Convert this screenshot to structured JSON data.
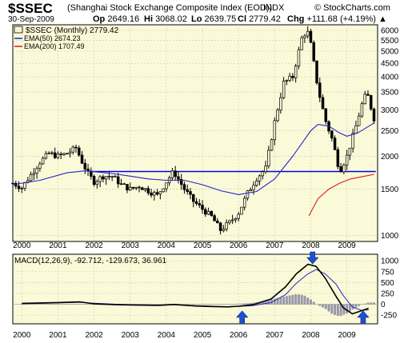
{
  "header": {
    "symbol": "$SSEC",
    "name": "(Shanghai Stock Exchange Composite Index (EOD))",
    "exchange": "INDX",
    "copyright": "© StockCharts.com",
    "date": "30-Sep-2009",
    "quote": {
      "open_label": "Op",
      "open": "2649.16",
      "high_label": "Hi",
      "high": "3068.02",
      "low_label": "Lo",
      "low": "2639.75",
      "close_label": "Cl",
      "close": "2779.42",
      "change_label": "Chg",
      "change": "+111.68 (+4.19%)",
      "change_arrow": "▲"
    }
  },
  "colors": {
    "panel_bg": "#fbfad8",
    "grid": "#c8c8b4",
    "candle": "#000000",
    "ema50": "#2323c8",
    "ema200": "#dc1e1e",
    "support_line": "#0000dc",
    "macd_line": "#000000",
    "signal_line": "#2828c8",
    "histogram": "#9898a8",
    "arrow": "#1e50d2"
  },
  "chart_data": [
    {
      "type": "candlestick",
      "legend": {
        "series": "$SSEC (Monthly)",
        "series_value": "2779.42",
        "ema50": "EMA(50)",
        "ema50_value": "2674.23",
        "ema200": "EMA(200)",
        "ema200_value": "1707.49"
      },
      "scale": "log",
      "ylim": [
        950,
        6300
      ],
      "xlim": [
        1999.75,
        2009.85
      ],
      "y_ticks": [
        6000,
        5500,
        5000,
        4500,
        4000,
        3500,
        3000,
        2500,
        2000,
        1500,
        1000
      ],
      "x_ticks": [
        "2000",
        "2001",
        "2002",
        "2003",
        "2004",
        "2005",
        "2006",
        "2007",
        "2008",
        "2009"
      ],
      "grid": true,
      "support_level": 1750,
      "support_range": [
        2001.9,
        2009.8
      ],
      "price": [
        [
          1999.75,
          1580
        ],
        [
          2000.0,
          1520
        ],
        [
          2000.25,
          1700
        ],
        [
          2000.5,
          1900
        ],
        [
          2000.75,
          2050
        ],
        [
          2001.0,
          2000
        ],
        [
          2001.25,
          2050
        ],
        [
          2001.5,
          2150
        ],
        [
          2001.67,
          1900
        ],
        [
          2001.83,
          1720
        ],
        [
          2002.0,
          1600
        ],
        [
          2002.25,
          1680
        ],
        [
          2002.5,
          1680
        ],
        [
          2002.75,
          1560
        ],
        [
          2003.0,
          1500
        ],
        [
          2003.25,
          1540
        ],
        [
          2003.5,
          1480
        ],
        [
          2003.75,
          1420
        ],
        [
          2004.0,
          1600
        ],
        [
          2004.2,
          1750
        ],
        [
          2004.35,
          1620
        ],
        [
          2004.5,
          1500
        ],
        [
          2004.75,
          1350
        ],
        [
          2005.0,
          1260
        ],
        [
          2005.25,
          1180
        ],
        [
          2005.5,
          1050
        ],
        [
          2005.75,
          1120
        ],
        [
          2006.0,
          1220
        ],
        [
          2006.25,
          1450
        ],
        [
          2006.5,
          1650
        ],
        [
          2006.75,
          1800
        ],
        [
          2007.0,
          2700
        ],
        [
          2007.25,
          3800
        ],
        [
          2007.5,
          4000
        ],
        [
          2007.75,
          5600
        ],
        [
          2007.9,
          6000
        ],
        [
          2008.0,
          5300
        ],
        [
          2008.2,
          3600
        ],
        [
          2008.4,
          2750
        ],
        [
          2008.6,
          2300
        ],
        [
          2008.8,
          1750
        ],
        [
          2009.0,
          2000
        ],
        [
          2009.25,
          2600
        ],
        [
          2009.4,
          3100
        ],
        [
          2009.55,
          3500
        ],
        [
          2009.75,
          2779
        ]
      ],
      "ema50": [
        [
          1999.75,
          1560
        ],
        [
          2000.5,
          1620
        ],
        [
          2001.25,
          1730
        ],
        [
          2001.75,
          1760
        ],
        [
          2002.5,
          1720
        ],
        [
          2003.0,
          1680
        ],
        [
          2003.5,
          1640
        ],
        [
          2004.0,
          1620
        ],
        [
          2004.5,
          1620
        ],
        [
          2005.0,
          1560
        ],
        [
          2005.5,
          1480
        ],
        [
          2006.0,
          1430
        ],
        [
          2006.5,
          1470
        ],
        [
          2007.0,
          1640
        ],
        [
          2007.5,
          2000
        ],
        [
          2008.0,
          2500
        ],
        [
          2008.2,
          2640
        ],
        [
          2008.5,
          2600
        ],
        [
          2008.8,
          2450
        ],
        [
          2009.0,
          2380
        ],
        [
          2009.3,
          2450
        ],
        [
          2009.75,
          2674
        ]
      ],
      "ema200": [
        [
          2007.95,
          1190
        ],
        [
          2008.2,
          1380
        ],
        [
          2008.5,
          1500
        ],
        [
          2008.8,
          1580
        ],
        [
          2009.1,
          1640
        ],
        [
          2009.5,
          1680
        ],
        [
          2009.75,
          1707
        ]
      ]
    },
    {
      "type": "line",
      "title": "MACD(12,26,9)",
      "values": [
        "-92.712",
        "-129.673",
        "36.961"
      ],
      "ylim": [
        -450,
        1150
      ],
      "y_ticks": [
        1000,
        750,
        500,
        250,
        0,
        -250
      ],
      "x_ticks": [
        "2000",
        "2001",
        "2002",
        "2003",
        "2004",
        "2005",
        "2006",
        "2007",
        "2008",
        "2009"
      ],
      "grid": true,
      "series": [
        {
          "role": "macd",
          "points": [
            [
              2000.0,
              20
            ],
            [
              2001.0,
              40
            ],
            [
              2001.6,
              55
            ],
            [
              2002.0,
              10
            ],
            [
              2002.6,
              -10
            ],
            [
              2003.2,
              -20
            ],
            [
              2003.8,
              -25
            ],
            [
              2004.2,
              -5
            ],
            [
              2004.8,
              -40
            ],
            [
              2005.3,
              -55
            ],
            [
              2005.7,
              -60
            ],
            [
              2006.0,
              -45
            ],
            [
              2006.4,
              -10
            ],
            [
              2006.9,
              120
            ],
            [
              2007.3,
              400
            ],
            [
              2007.6,
              700
            ],
            [
              2007.92,
              920
            ],
            [
              2008.15,
              870
            ],
            [
              2008.4,
              600
            ],
            [
              2008.7,
              180
            ],
            [
              2008.9,
              -80
            ],
            [
              2009.15,
              -220
            ],
            [
              2009.4,
              -150
            ],
            [
              2009.6,
              -92
            ]
          ]
        },
        {
          "role": "signal",
          "points": [
            [
              2000.0,
              10
            ],
            [
              2001.0,
              30
            ],
            [
              2001.6,
              45
            ],
            [
              2002.0,
              25
            ],
            [
              2002.6,
              0
            ],
            [
              2003.2,
              -15
            ],
            [
              2003.8,
              -20
            ],
            [
              2004.2,
              -10
            ],
            [
              2004.8,
              -30
            ],
            [
              2005.3,
              -45
            ],
            [
              2005.7,
              -55
            ],
            [
              2006.0,
              -50
            ],
            [
              2006.4,
              -30
            ],
            [
              2006.9,
              40
            ],
            [
              2007.3,
              220
            ],
            [
              2007.6,
              480
            ],
            [
              2007.92,
              700
            ],
            [
              2008.15,
              800
            ],
            [
              2008.4,
              700
            ],
            [
              2008.7,
              460
            ],
            [
              2008.9,
              200
            ],
            [
              2009.15,
              -60
            ],
            [
              2009.4,
              -140
            ],
            [
              2009.6,
              -130
            ]
          ]
        }
      ],
      "histogram": [
        [
          2000.0,
          10
        ],
        [
          2000.5,
          12
        ],
        [
          2001.0,
          10
        ],
        [
          2001.5,
          8
        ],
        [
          2001.9,
          -12
        ],
        [
          2002.3,
          -15
        ],
        [
          2002.7,
          -10
        ],
        [
          2003.1,
          -6
        ],
        [
          2003.5,
          -4
        ],
        [
          2003.9,
          -3
        ],
        [
          2004.3,
          5
        ],
        [
          2004.7,
          -10
        ],
        [
          2005.1,
          -12
        ],
        [
          2005.5,
          -8
        ],
        [
          2005.9,
          8
        ],
        [
          2006.2,
          20
        ],
        [
          2006.5,
          45
        ],
        [
          2006.8,
          80
        ],
        [
          2007.0,
          130
        ],
        [
          2007.2,
          165
        ],
        [
          2007.4,
          200
        ],
        [
          2007.6,
          230
        ],
        [
          2007.8,
          215
        ],
        [
          2008.0,
          110
        ],
        [
          2008.2,
          -20
        ],
        [
          2008.4,
          -100
        ],
        [
          2008.6,
          -230
        ],
        [
          2008.8,
          -280
        ],
        [
          2009.0,
          -210
        ],
        [
          2009.2,
          -100
        ],
        [
          2009.4,
          -10
        ],
        [
          2009.6,
          40
        ]
      ],
      "arrows": [
        {
          "x": 2006.1,
          "direction": "up"
        },
        {
          "x": 2008.05,
          "direction": "down"
        },
        {
          "x": 2009.45,
          "direction": "up"
        }
      ]
    }
  ]
}
